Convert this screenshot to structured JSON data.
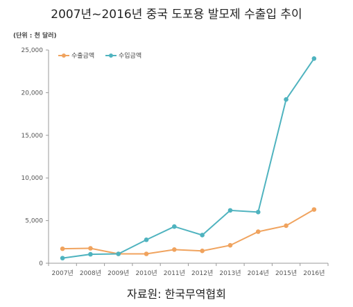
{
  "title": "2007년~2016년 중국 도포용 발모제 수출입 추이",
  "unit": "(단위 : 천 달러)",
  "source": "자료원: 한국무역협회",
  "chart_data": {
    "type": "line",
    "categories": [
      "2007년",
      "2008년",
      "2009년",
      "2010년",
      "2011년",
      "2012년",
      "2013년",
      "2014년",
      "2015년",
      "2016년"
    ],
    "series": [
      {
        "name": "수출금액",
        "color": "#f0a35e",
        "values": [
          1700,
          1750,
          1100,
          1100,
          1600,
          1450,
          2100,
          3700,
          4400,
          6300
        ]
      },
      {
        "name": "수입금액",
        "color": "#4fb3bf",
        "values": [
          600,
          1050,
          1100,
          2750,
          4300,
          3300,
          6200,
          6000,
          19200,
          24000
        ]
      }
    ],
    "ylim": [
      0,
      25000
    ],
    "yticks": [
      "0",
      "5,000",
      "10,000",
      "15,000",
      "20,000",
      "25,000"
    ],
    "ytick_values": [
      0,
      5000,
      10000,
      15000,
      20000,
      25000
    ],
    "legend_position": "top-left",
    "grid": false
  }
}
